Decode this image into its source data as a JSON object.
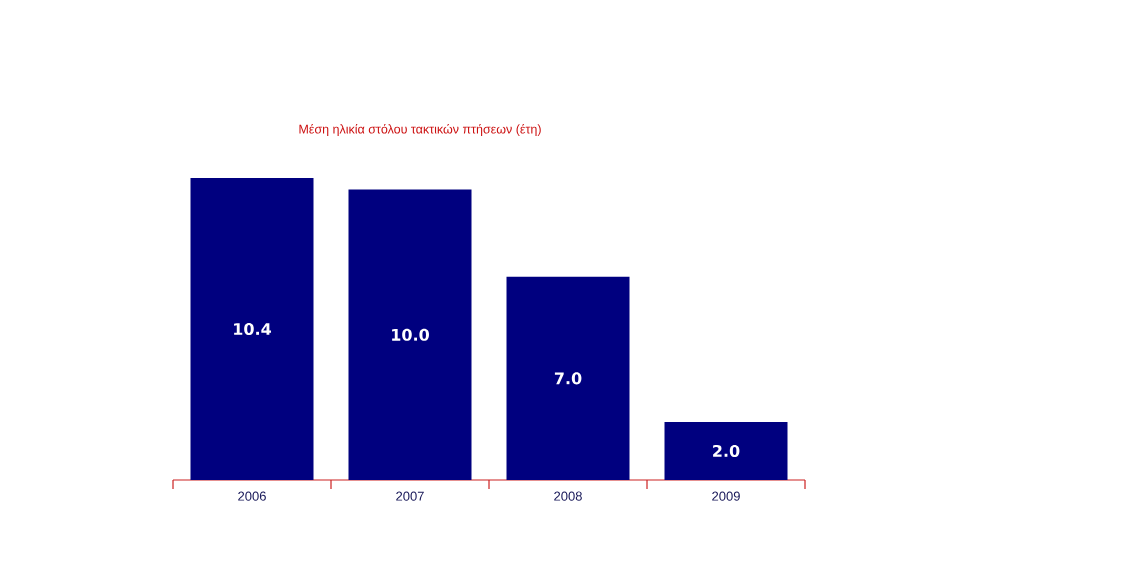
{
  "chart_data": {
    "type": "bar",
    "title": "Μέση ηλικία στόλου τακτικών πτήσεων (έτη)",
    "categories": [
      "2006",
      "2007",
      "2008",
      "2009"
    ],
    "values": [
      10.4,
      10.0,
      7.0,
      2.0
    ],
    "value_labels": [
      "10.4",
      "10.0",
      "7.0",
      "2.0"
    ],
    "color": "#00007f"
  }
}
